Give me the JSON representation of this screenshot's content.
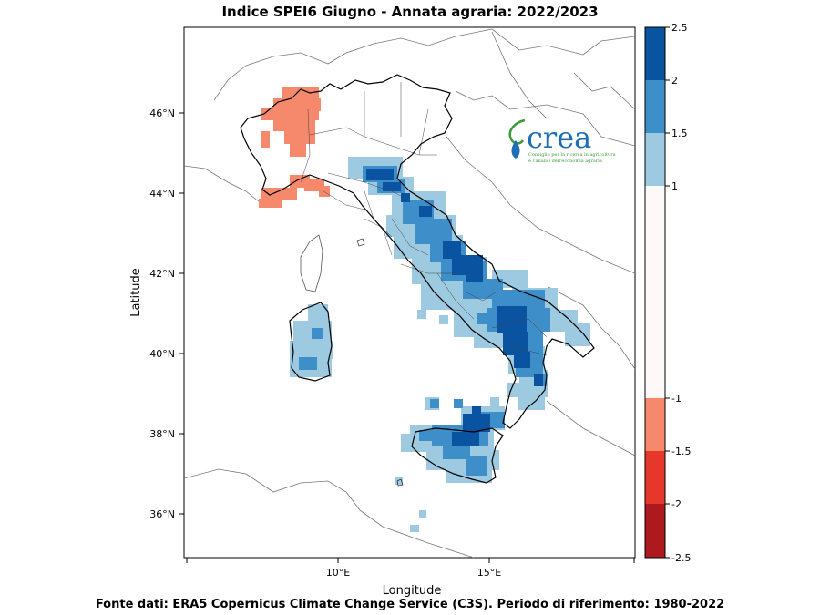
{
  "title": "Indice SPEI6 Giugno - Annata agraria: 2022/2023",
  "footer": "Fonte dati: ERA5 Copernicus Climate Change Service (C3S). Periodo di riferimento: 1980-2022",
  "axes": {
    "xlabel": "Longitude",
    "ylabel": "Latitude",
    "x_ticks": [
      "10°E",
      "15°E"
    ],
    "y_ticks": [
      "46°N",
      "44°N",
      "42°N",
      "40°N",
      "38°N",
      "36°N"
    ]
  },
  "colorbar": {
    "labels": [
      "2.5",
      "2",
      "1.5",
      "1",
      "-1",
      "-1.5",
      "-2",
      "-2.5"
    ],
    "colors": [
      "#0a53a0",
      "#3d8ec9",
      "#9ecae1",
      "#fdf9f9",
      "#f6896c",
      "#e5382b",
      "#ac1a1f"
    ]
  },
  "logo": {
    "name": "crea",
    "tagline_1": "Consiglio per la ricerca in agricoltura",
    "tagline_2": "e l'analisi dell'economia agraria"
  },
  "palette": {
    "dark_blue": "#0a53a0",
    "mid_blue": "#3d8ec9",
    "light_blue": "#9ecae1",
    "light_red": "#f6896c",
    "logo_green": "#3b9a3a",
    "logo_blue": "#1d6fb5"
  }
}
